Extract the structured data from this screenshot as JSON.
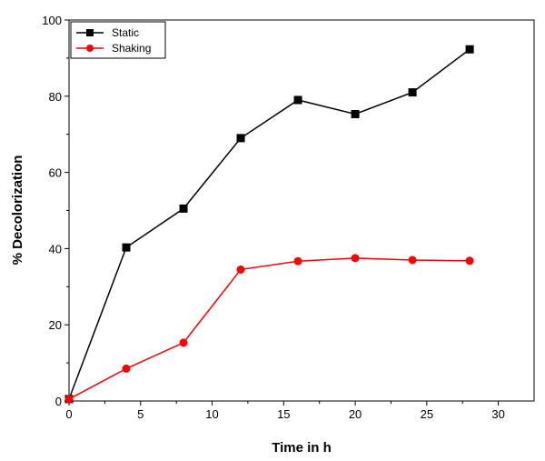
{
  "chart_data": {
    "type": "line",
    "xlabel": "Time in h",
    "ylabel": "% Decolorization",
    "xlim": [
      0,
      32.5
    ],
    "ylim": [
      0,
      100
    ],
    "xticks": [
      0,
      5,
      10,
      15,
      20,
      25,
      30
    ],
    "yticks": [
      0,
      20,
      40,
      60,
      80,
      100
    ],
    "grid": false,
    "legend_position": "top-left",
    "series": [
      {
        "name": "Static",
        "color": "#000000",
        "marker": "square",
        "x": [
          0,
          4,
          8,
          12,
          16,
          20,
          24,
          28
        ],
        "y": [
          0.5,
          40.3,
          50.5,
          69.0,
          79.0,
          75.3,
          81.0,
          92.3
        ]
      },
      {
        "name": "Shaking",
        "color": "#ff0000",
        "marker": "circle",
        "x": [
          0,
          4,
          8,
          12,
          16,
          20,
          24,
          28
        ],
        "y": [
          0.5,
          8.5,
          15.3,
          34.5,
          36.7,
          37.5,
          37.0,
          36.8
        ]
      }
    ]
  }
}
